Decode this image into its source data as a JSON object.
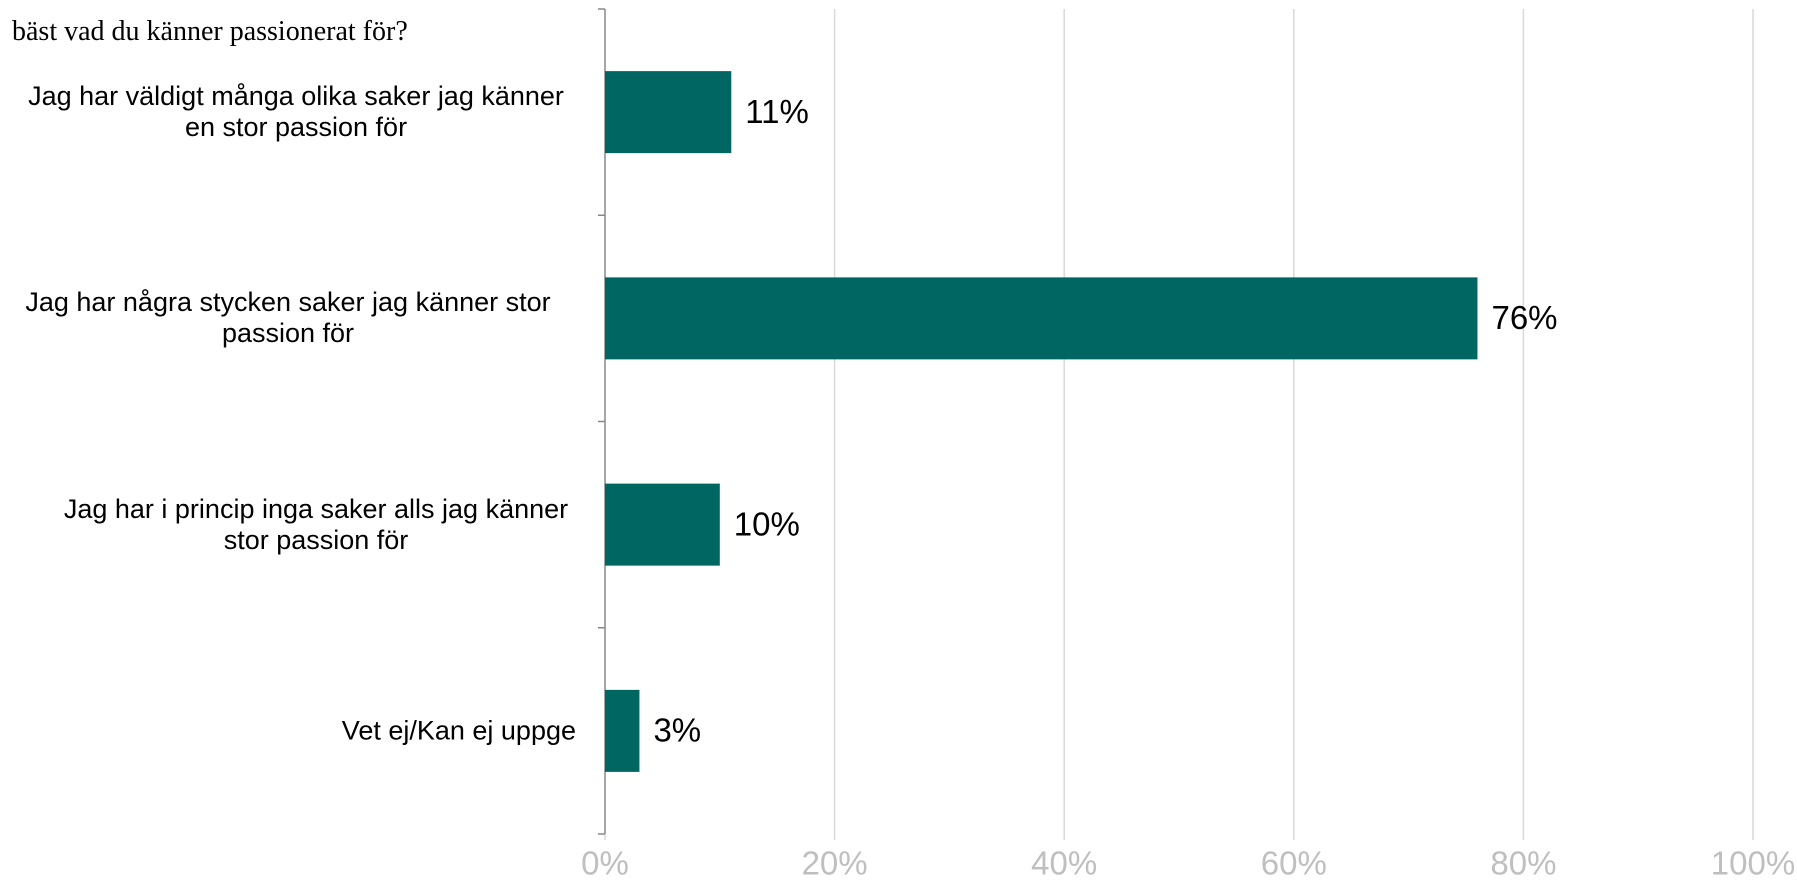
{
  "chart_data": {
    "type": "barh",
    "title": "bäst vad du känner passionerat för?",
    "categories": [
      "Jag har väldigt många olika saker jag känner en stor passion för",
      "Jag har några stycken saker jag känner stor passion för",
      "Jag har i princip inga saker alls jag känner stor passion för",
      "Vet ej/Kan ej uppge"
    ],
    "values": [
      11,
      76,
      10,
      3
    ],
    "value_labels": [
      "11%",
      "76%",
      "10%",
      "3%"
    ],
    "color": "#006661",
    "xlim": [
      0,
      100
    ],
    "xticks": [
      {
        "value": 0,
        "label": "0%"
      },
      {
        "value": 20,
        "label": "20%"
      },
      {
        "value": 40,
        "label": "40%"
      },
      {
        "value": 60,
        "label": "60%"
      },
      {
        "value": 80,
        "label": "80%"
      },
      {
        "value": 100,
        "label": "100%"
      }
    ],
    "grid": true
  }
}
